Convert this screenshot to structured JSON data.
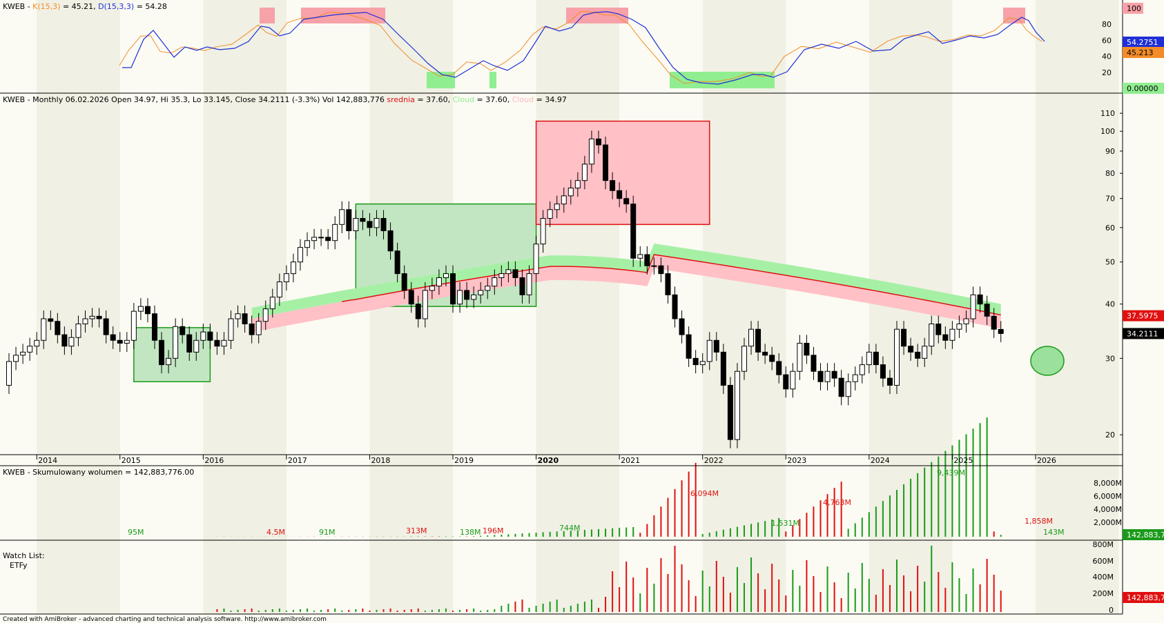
{
  "colors": {
    "background": "#fbfbf3",
    "band": "#f0f0e4",
    "k_line": "#f28c28",
    "d_line": "#1f2fd6",
    "overbought": "#f7a1a8",
    "oversold": "#90ee90",
    "cloud_green": "#a6f0a6",
    "cloud_red": "#ffc0c6",
    "average": "#e01010",
    "up_volume": "#1a9a1a",
    "down_volume": "#e01010"
  },
  "stoch_pane": {
    "header": {
      "ticker": "KWEB",
      "k_label": "K(15,3)",
      "k_value": "= 45.21,",
      "d_label": "D(15,3,3)",
      "d_value": "= 54.28"
    },
    "axis_ticks": [
      "80",
      "60",
      "40",
      "20"
    ],
    "top_label": "100",
    "bottom_label": "0.00000",
    "d_last": "54.2751",
    "k_last": "45.213"
  },
  "price_pane": {
    "header": {
      "main": "KWEB - Monthly 06.02.2026 Open 34.97, Hi 35.3, Lo 33.145, Close 34.2111 (-3.3%) Vol 142,883,776",
      "srednia_label": "srednia",
      "srednia_value": "= 37.60,",
      "cloud1_label": "Cloud",
      "cloud1_value": "= 37.60,",
      "cloud2_label": "Cloud",
      "cloud2_value": "= 34.97"
    },
    "axis_ticks": [
      "110",
      "100",
      "90",
      "80",
      "70",
      "60",
      "50",
      "40",
      "30",
      "20"
    ],
    "avg_last": "37.5975",
    "close_last": "34.2111"
  },
  "years": [
    "2014",
    "2015",
    "2016",
    "2017",
    "2018",
    "2019",
    "2020",
    "2021",
    "2022",
    "2023",
    "2024",
    "2025",
    "2026"
  ],
  "volume_pane": {
    "header": {
      "label": "KWEB - Skumulowany wolumen",
      "value": "= 142,883,776.00"
    },
    "annotations": [
      "95M",
      "4.5M",
      "91M",
      "313M",
      "138M",
      "196M",
      "744M",
      "6,094M",
      "1,531M",
      "4,763M",
      "9,439M",
      "1,858M",
      "143M"
    ],
    "axis_ticks": [
      "8,000M",
      "6,000M",
      "4,000M",
      "2,000M"
    ],
    "last": "142,883,7"
  },
  "watch_pane": {
    "title": "Watch List:",
    "item": "ETFy",
    "axis_ticks": [
      "800M",
      "600M",
      "400M",
      "200M",
      "0"
    ],
    "last": "142,883,7"
  },
  "footer": "Created with AmiBroker - advanced charting and technical analysis software. http://www.amibroker.com",
  "chart_data": {
    "type": "candlestick",
    "ticker": "KWEB",
    "timeframe": "Monthly",
    "x_range": [
      "2013-09",
      "2026-02"
    ],
    "y_scale": "log",
    "ylim": [
      18,
      115
    ],
    "last_bar": {
      "date": "06.02.2026",
      "open": 34.97,
      "high": 35.3,
      "low": 33.145,
      "close": 34.2111,
      "change_pct": -3.3,
      "volume": 142883776
    },
    "indicators": {
      "srednia": 37.6,
      "cloud_upper": 37.6,
      "cloud_lower": 34.97,
      "stoch_k": {
        "params": "15,3",
        "last": 45.21
      },
      "stoch_d": {
        "params": "15,3,3",
        "last": 54.28
      },
      "cumulative_volume": 142883776.0
    },
    "zones": [
      {
        "type": "accumulation",
        "from": "2015-03",
        "to": "2016-02",
        "low": 26.5,
        "high": 35.3
      },
      {
        "type": "accumulation",
        "from": "2017-11",
        "to": "2020-01",
        "low": 39.5,
        "high": 68.0
      },
      {
        "type": "distribution",
        "from": "2020-01",
        "to": "2022-02",
        "low": 61.0,
        "high": 105.5
      }
    ]
  }
}
